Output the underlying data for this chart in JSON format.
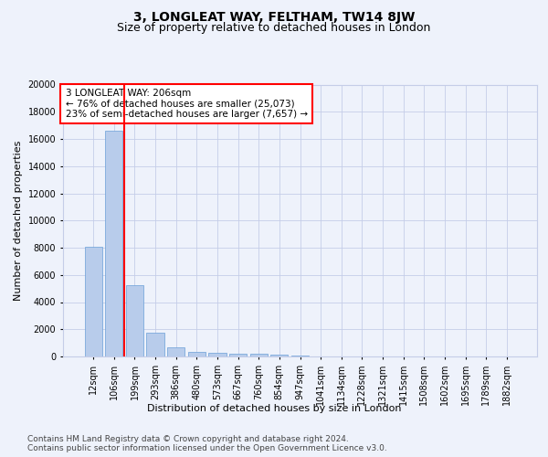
{
  "title": "3, LONGLEAT WAY, FELTHAM, TW14 8JW",
  "subtitle": "Size of property relative to detached houses in London",
  "xlabel": "Distribution of detached houses by size in London",
  "ylabel": "Number of detached properties",
  "categories": [
    "12sqm",
    "106sqm",
    "199sqm",
    "293sqm",
    "386sqm",
    "480sqm",
    "573sqm",
    "667sqm",
    "760sqm",
    "854sqm",
    "947sqm",
    "1041sqm",
    "1134sqm",
    "1228sqm",
    "1321sqm",
    "1415sqm",
    "1508sqm",
    "1602sqm",
    "1695sqm",
    "1789sqm",
    "1882sqm"
  ],
  "values": [
    8050,
    16600,
    5250,
    1750,
    680,
    350,
    280,
    220,
    180,
    150,
    100,
    0,
    0,
    0,
    0,
    0,
    0,
    0,
    0,
    0,
    0
  ],
  "bar_color": "#b8cceb",
  "bar_edge_color": "#6a9fd8",
  "vline_color": "red",
  "vline_pos": 1.5,
  "annotation_text": "3 LONGLEAT WAY: 206sqm\n← 76% of detached houses are smaller (25,073)\n23% of semi-detached houses are larger (7,657) →",
  "annotation_box_color": "white",
  "annotation_box_edge": "red",
  "ylim": [
    0,
    20000
  ],
  "yticks": [
    0,
    2000,
    4000,
    6000,
    8000,
    10000,
    12000,
    14000,
    16000,
    18000,
    20000
  ],
  "footer": "Contains HM Land Registry data © Crown copyright and database right 2024.\nContains public sector information licensed under the Open Government Licence v3.0.",
  "background_color": "#eef2fb",
  "plot_bg_color": "#eef2fb",
  "grid_color": "#c5cde8",
  "title_fontsize": 10,
  "subtitle_fontsize": 9,
  "axis_label_fontsize": 8,
  "tick_fontsize": 7,
  "footer_fontsize": 6.5,
  "annotation_fontsize": 7.5
}
